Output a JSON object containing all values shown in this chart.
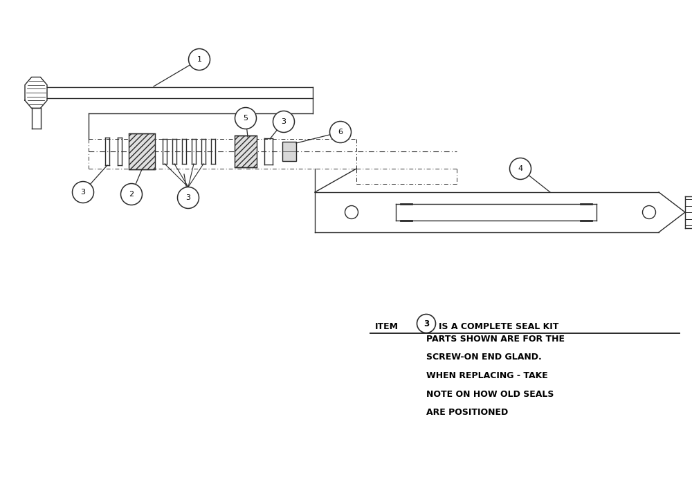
{
  "bg_color": "#ffffff",
  "line_color": "#2a2a2a",
  "note_lines": [
    "PARTS SHOWN ARE FOR THE",
    "SCREW-ON END GLAND.",
    "WHEN REPLACING - TAKE",
    "NOTE ON HOW OLD SEALS",
    "ARE POSITIONED"
  ]
}
